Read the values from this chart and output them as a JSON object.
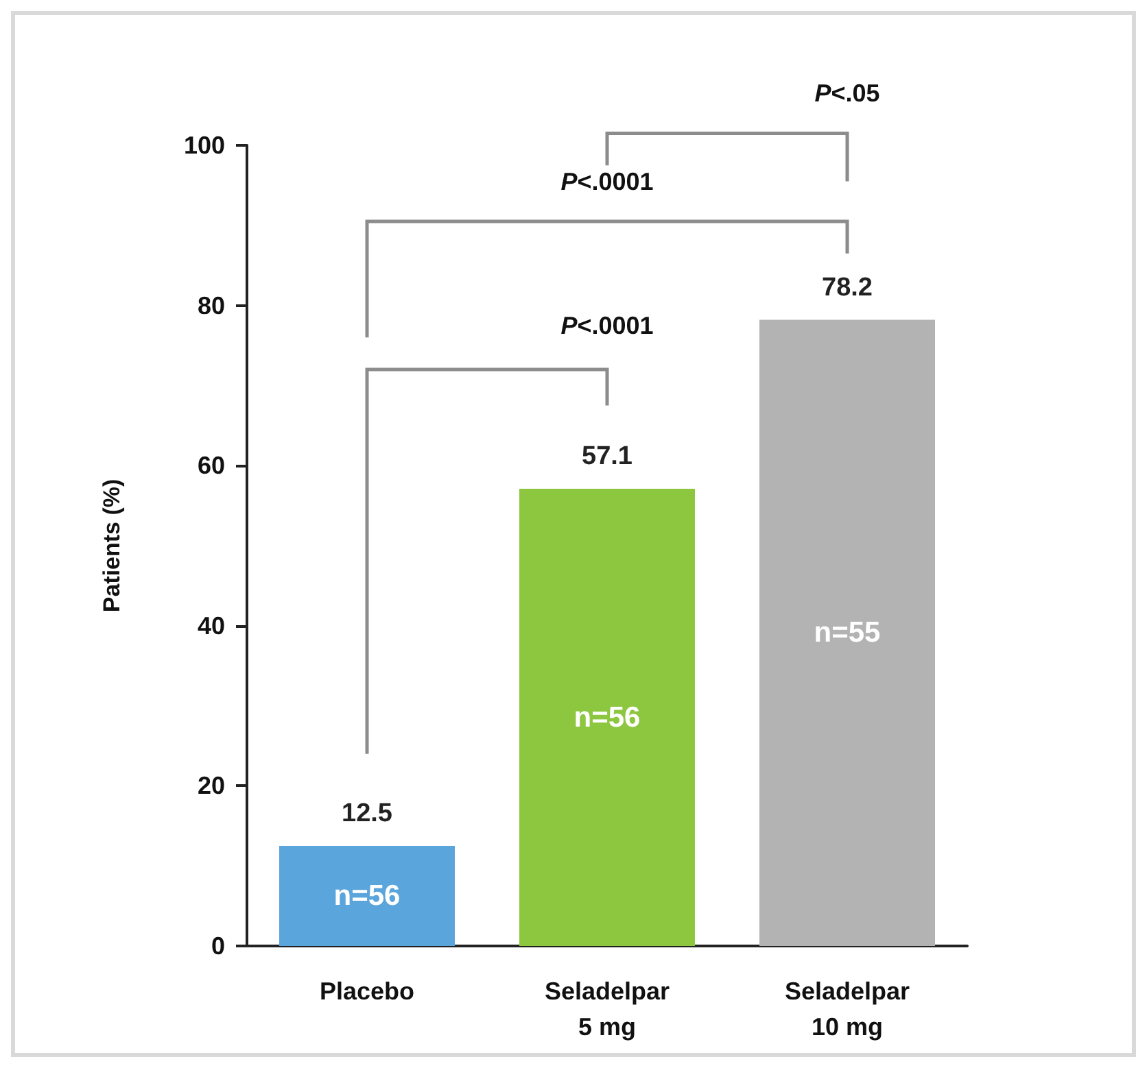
{
  "chart_data": {
    "type": "bar",
    "ylabel": "Patients (%)",
    "categories": [
      "Placebo",
      "Seladelpar\n5 mg",
      "Seladelpar\n10 mg"
    ],
    "values": [
      12.5,
      57.1,
      78.2
    ],
    "colors": [
      "#5aa5dc",
      "#8dc63f",
      "#b3b3b3"
    ],
    "ylim": [
      0,
      100
    ],
    "yticks": [
      0,
      20,
      40,
      60,
      80,
      100
    ],
    "grid": false,
    "data_labels": true,
    "annotations": [
      "P<.0001",
      "P<.0001",
      "P<.05",
      "n=56",
      "n=56",
      "n=55"
    ]
  }
}
